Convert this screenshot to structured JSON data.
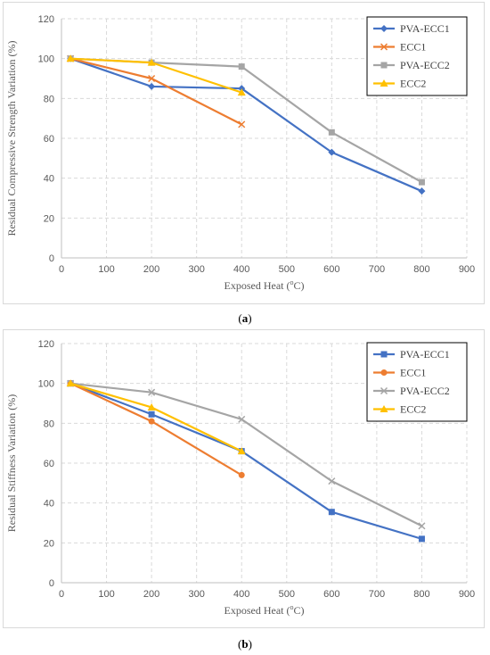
{
  "chart_data": [
    {
      "type": "line",
      "panel_label": "a",
      "xlabel": "Exposed Heat (",
      "xlabel_sup": "o",
      "xlabel_unit": "C)",
      "ylabel": "Residual Compressive Strength Variation (%)",
      "xlim": [
        0,
        900
      ],
      "ylim": [
        0,
        120
      ],
      "xticks": [
        0,
        100,
        200,
        300,
        400,
        500,
        600,
        700,
        800,
        900
      ],
      "yticks": [
        0,
        20,
        40,
        60,
        80,
        100,
        120
      ],
      "grid": true,
      "legend_position": "top-right",
      "series": [
        {
          "name": "PVA-ECC1",
          "color": "#4472C4",
          "marker": "diamond",
          "x": [
            20,
            200,
            400,
            600,
            800
          ],
          "y": [
            100,
            86,
            85,
            53,
            33.5
          ]
        },
        {
          "name": "ECC1",
          "color": "#ED7D31",
          "marker": "x",
          "x": [
            20,
            200,
            400
          ],
          "y": [
            100,
            90,
            67
          ]
        },
        {
          "name": "PVA-ECC2",
          "color": "#A5A5A5",
          "marker": "square",
          "x": [
            20,
            200,
            400,
            600,
            800
          ],
          "y": [
            100,
            98,
            96,
            63,
            38
          ]
        },
        {
          "name": "ECC2",
          "color": "#FFC000",
          "marker": "triangle",
          "x": [
            20,
            200,
            400
          ],
          "y": [
            100,
            98,
            83
          ]
        }
      ]
    },
    {
      "type": "line",
      "panel_label": "b",
      "xlabel": "Exposed Heat (",
      "xlabel_sup": "o",
      "xlabel_unit": "C)",
      "ylabel": "Residual Stiffness Variation (%)",
      "xlim": [
        0,
        900
      ],
      "ylim": [
        0,
        120
      ],
      "xticks": [
        0,
        100,
        200,
        300,
        400,
        500,
        600,
        700,
        800,
        900
      ],
      "yticks": [
        0,
        20,
        40,
        60,
        80,
        100,
        120
      ],
      "grid": true,
      "legend_position": "top-right",
      "series": [
        {
          "name": "PVA-ECC1",
          "color": "#4472C4",
          "marker": "square",
          "x": [
            20,
            200,
            400,
            600,
            800
          ],
          "y": [
            100,
            84.5,
            66,
            35.5,
            22
          ]
        },
        {
          "name": "ECC1",
          "color": "#ED7D31",
          "marker": "circle",
          "x": [
            20,
            200,
            400
          ],
          "y": [
            100,
            81,
            54
          ]
        },
        {
          "name": "PVA-ECC2",
          "color": "#A5A5A5",
          "marker": "x",
          "x": [
            20,
            200,
            400,
            600,
            800
          ],
          "y": [
            100,
            95.5,
            82,
            51,
            28.5
          ]
        },
        {
          "name": "ECC2",
          "color": "#FFC000",
          "marker": "triangle",
          "x": [
            20,
            200,
            400
          ],
          "y": [
            100,
            88,
            66
          ]
        }
      ]
    }
  ]
}
